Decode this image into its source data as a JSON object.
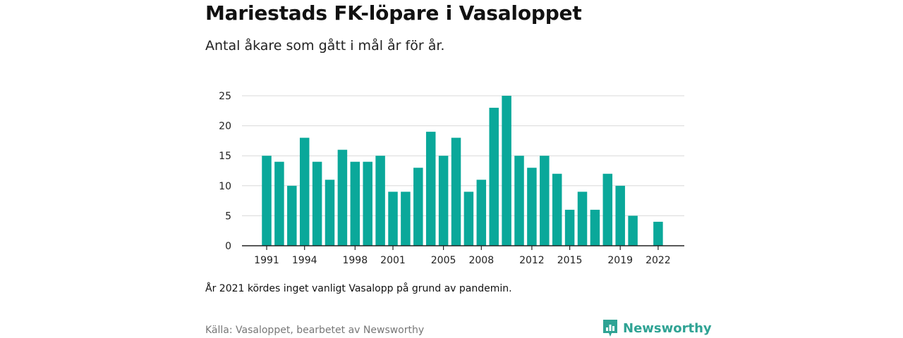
{
  "header": {
    "title": "Mariestads FK-löpare i Vasaloppet",
    "subtitle": "Antal åkare som gått i mål år för år."
  },
  "footer": {
    "note": "År 2021 kördes inget vanligt Vasalopp på grund av pandemin.",
    "source": "Källa: Vasaloppet, bearbetet av Newsworthy",
    "brand": "Newsworthy",
    "brand_icon": "newsworthy-logo-icon"
  },
  "colors": {
    "bar": "#0aa89a",
    "brand": "#2fa394",
    "grid": "#d9d9d9",
    "axis": "#222222"
  },
  "chart_data": {
    "type": "bar",
    "title": "Mariestads FK-löpare i Vasaloppet",
    "subtitle": "Antal åkare som gått i mål år för år.",
    "xlabel": "",
    "ylabel": "",
    "ylim": [
      0,
      25
    ],
    "yticks": [
      0,
      5,
      10,
      15,
      20,
      25
    ],
    "xtick_labels": [
      "1991",
      "1994",
      "1998",
      "2001",
      "2005",
      "2008",
      "2012",
      "2015",
      "2019",
      "2022"
    ],
    "grid": true,
    "x": [
      1991,
      1992,
      1993,
      1994,
      1995,
      1996,
      1997,
      1998,
      1999,
      2000,
      2001,
      2002,
      2003,
      2004,
      2005,
      2006,
      2007,
      2008,
      2009,
      2010,
      2011,
      2012,
      2013,
      2014,
      2015,
      2016,
      2017,
      2018,
      2019,
      2020,
      2021,
      2022
    ],
    "values": [
      15,
      14,
      10,
      18,
      14,
      11,
      16,
      14,
      14,
      15,
      9,
      9,
      13,
      19,
      15,
      18,
      9,
      11,
      23,
      25,
      15,
      13,
      15,
      12,
      6,
      9,
      6,
      12,
      10,
      5,
      0,
      4
    ]
  }
}
